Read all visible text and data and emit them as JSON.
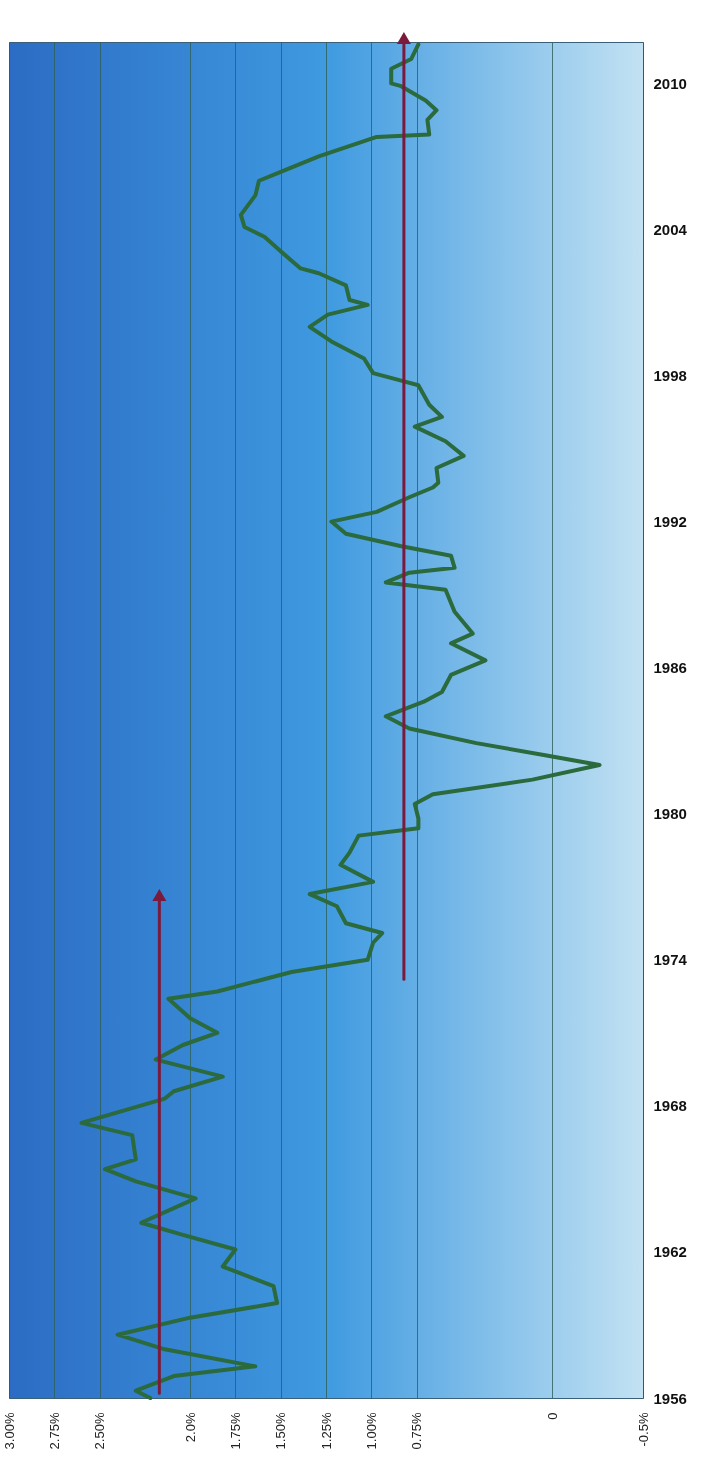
{
  "chart_data": {
    "type": "line",
    "orientation": "horizontal",
    "grid": "x",
    "line_style": "solid",
    "xlim": [
      3,
      -0.5
    ],
    "ylim": [
      1956,
      2011.7
    ],
    "xticks": [
      {
        "value": 3,
        "label": "3.00%"
      },
      {
        "value": 2.75,
        "label": "2.75%"
      },
      {
        "value": 2.5,
        "label": "2.50%"
      },
      {
        "value": 2,
        "label": "2.0%"
      },
      {
        "value": 1.75,
        "label": "1.75%"
      },
      {
        "value": 1.5,
        "label": "1.50%"
      },
      {
        "value": 1.25,
        "label": "1.25%"
      },
      {
        "value": 1,
        "label": "1.00%"
      },
      {
        "value": 0.75,
        "label": "0.75%"
      },
      0,
      {
        "value": -0.5,
        "label": "-0.5%"
      }
    ],
    "yticks": [
      1956,
      1962,
      1968,
      1974,
      1980,
      1986,
      1992,
      1998,
      2004,
      2010
    ],
    "series": [
      {
        "color": "#2b6a3c",
        "x": [
          1956.0,
          1956.3,
          1956.9,
          1957.3,
          1958.0,
          1958.6,
          1959.3,
          1959.9,
          1960.6,
          1961.4,
          1962.1,
          1962.7,
          1963.2,
          1964.2,
          1964.9,
          1965.4,
          1965.8,
          1966.8,
          1967.3,
          1968.3,
          1968.6,
          1969.2,
          1969.9,
          1970.5,
          1971.0,
          1971.6,
          1972.4,
          1972.7,
          1973.5,
          1974.0,
          1974.7,
          1975.1,
          1975.5,
          1976.2,
          1976.7,
          1977.2,
          1977.9,
          1978.4,
          1979.1,
          1979.4,
          1979.8,
          1980.4,
          1980.8,
          1981.4,
          1982.0,
          1982.4,
          1982.9,
          1983.5,
          1984.0,
          1984.6,
          1985.0,
          1985.7,
          1986.3,
          1987.0,
          1987.4,
          1988.3,
          1989.2,
          1989.5,
          1989.9,
          1990.1,
          1990.6,
          1991.0,
          1991.5,
          1992.0,
          1992.4,
          1993.0,
          1993.4,
          1993.6,
          1994.2,
          1994.7,
          1995.3,
          1995.9,
          1996.3,
          1996.8,
          1997.6,
          1997.8,
          1998.1,
          1998.7,
          1999.4,
          2000.0,
          2000.5,
          2000.9,
          2001.1,
          2001.7,
          2002.2,
          2002.4,
          2003.1,
          2003.7,
          2004.1,
          2004.6,
          2005.4,
          2006.0,
          2006.3,
          2007.0,
          2007.8,
          2007.9,
          2008.5,
          2008.9,
          2009.3,
          2009.9,
          2010.0,
          2010.6,
          2011.0,
          2011.6
        ],
        "values": [
          2.22,
          2.3,
          2.09,
          1.64,
          2.14,
          2.4,
          2.0,
          1.52,
          1.54,
          1.82,
          1.75,
          2.04,
          2.27,
          1.97,
          2.3,
          2.47,
          2.3,
          2.32,
          2.6,
          2.14,
          2.09,
          1.82,
          2.19,
          2.04,
          1.85,
          2.0,
          2.12,
          1.85,
          1.44,
          1.02,
          0.99,
          0.94,
          1.14,
          1.19,
          1.34,
          0.99,
          1.17,
          1.12,
          1.07,
          0.74,
          0.74,
          0.76,
          0.66,
          0.11,
          -0.26,
          0.04,
          0.42,
          0.79,
          0.92,
          0.71,
          0.61,
          0.56,
          0.37,
          0.56,
          0.44,
          0.54,
          0.59,
          0.92,
          0.79,
          0.54,
          0.56,
          0.84,
          1.14,
          1.22,
          0.97,
          0.79,
          0.66,
          0.63,
          0.64,
          0.49,
          0.59,
          0.76,
          0.61,
          0.68,
          0.74,
          0.84,
          0.99,
          1.04,
          1.22,
          1.34,
          1.24,
          1.02,
          1.12,
          1.14,
          1.29,
          1.39,
          1.5,
          1.59,
          1.7,
          1.72,
          1.64,
          1.62,
          1.52,
          1.29,
          0.97,
          0.68,
          0.69,
          0.64,
          0.7,
          0.84,
          0.89,
          0.89,
          0.78,
          0.74
        ]
      },
      {
        "color": "#7b1a3c",
        "x": [
          1956.2,
          1976.5
        ],
        "values": [
          2.17,
          2.17
        ]
      },
      {
        "color": "#7b1a3c",
        "x": [
          1973.2,
          2011.7
        ],
        "values": [
          0.82,
          0.82
        ]
      }
    ]
  }
}
